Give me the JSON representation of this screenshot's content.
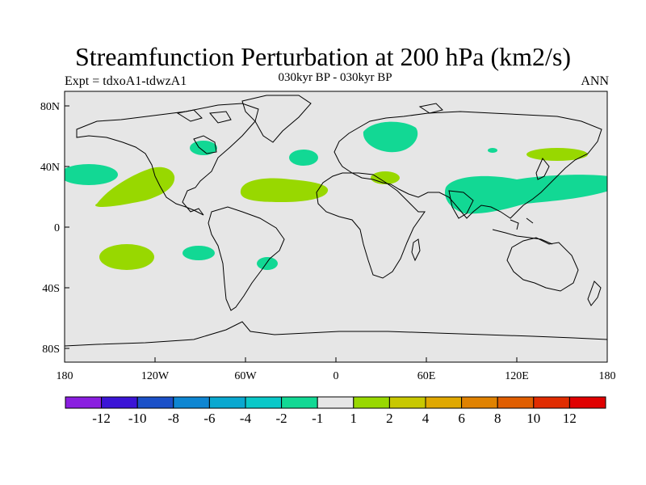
{
  "title": "Streamfunction Perturbation at 200 hPa (km2/s)",
  "experiment": "Expt = tdxoA1-tdwzA1",
  "subtitle": "030kyr BP - 030kyr BP",
  "season": "ANN",
  "axes": {
    "lon_ticks": [
      "180",
      "120W",
      "60W",
      "0",
      "60E",
      "120E",
      "180"
    ],
    "lat_ticks": [
      "80N",
      "40N",
      "0",
      "40S",
      "80S"
    ]
  },
  "colorbar": {
    "colors": [
      "#8a1ee0",
      "#3b14d6",
      "#1b50c8",
      "#0e86d2",
      "#0aa8d0",
      "#0ac8c8",
      "#12d894",
      "#e6e6e6",
      "#98d800",
      "#c8c800",
      "#e0a800",
      "#e08200",
      "#e05e00",
      "#e02c00",
      "#e00000"
    ],
    "labels": [
      "-12",
      "-10",
      "-8",
      "-6",
      "-4",
      "-2",
      "-1",
      "1",
      "2",
      "4",
      "6",
      "8",
      "10",
      "12"
    ]
  },
  "colors": {
    "map_background": "#e6e6e6",
    "negative_anomaly": "#12d894",
    "positive_anomaly": "#98d800"
  }
}
